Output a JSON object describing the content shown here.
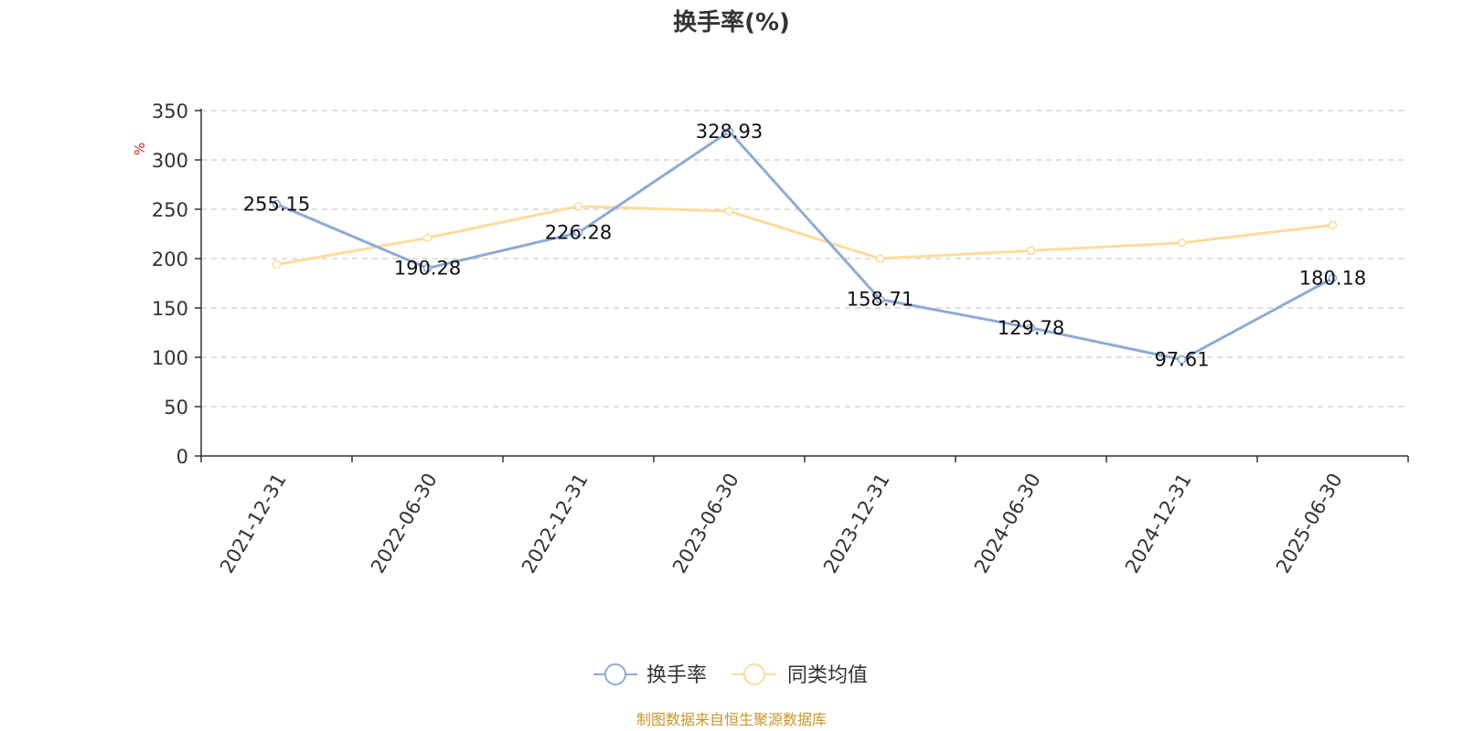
{
  "chart_data": {
    "type": "line",
    "title": "换手率(%)",
    "ylabel": "%",
    "xlabel": "",
    "ylim": [
      0,
      350
    ],
    "yticks": [
      0,
      50,
      100,
      150,
      200,
      250,
      300,
      350
    ],
    "grid": true,
    "legend_position": "bottom",
    "categories": [
      "2021-12-31",
      "2022-06-30",
      "2022-12-31",
      "2023-06-30",
      "2023-12-31",
      "2024-06-30",
      "2024-12-31",
      "2025-06-30"
    ],
    "series": [
      {
        "name": "换手率",
        "color": "#8eaad6",
        "values": [
          255.15,
          190.28,
          226.28,
          328.93,
          158.71,
          129.78,
          97.61,
          180.18
        ],
        "labels": [
          "255.15",
          "190.28",
          "226.28",
          "328.93",
          "158.71",
          "129.78",
          "97.61",
          "180.18"
        ]
      },
      {
        "name": "同类均值",
        "color": "#fddc9c",
        "values": [
          194,
          221,
          253,
          248,
          200,
          208,
          216,
          234
        ]
      }
    ],
    "source": "制图数据来自恒生聚源数据库"
  }
}
